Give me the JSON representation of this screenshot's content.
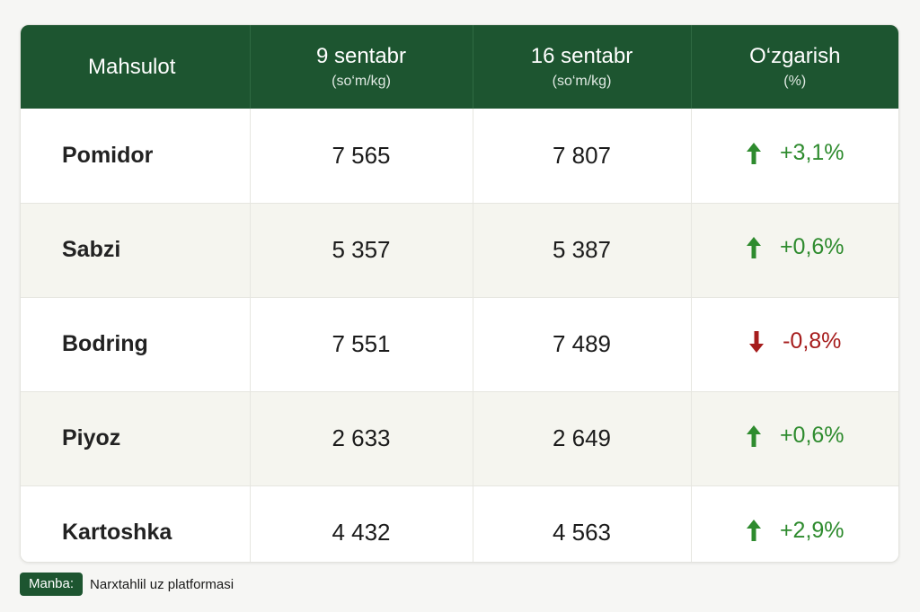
{
  "table": {
    "headers": [
      {
        "main": "Mahsulot",
        "sub": ""
      },
      {
        "main": "9 sentabr",
        "sub": "(so‘m/kg)"
      },
      {
        "main": "16 sentabr",
        "sub": "(so‘m/kg)"
      },
      {
        "main": "O‘zgarish",
        "sub": "(%)"
      }
    ],
    "rows": [
      {
        "product": "Pomidor",
        "sep9": "7 565",
        "sep16": "7 807",
        "change": "+3,1%",
        "direction": "up"
      },
      {
        "product": "Sabzi",
        "sep9": "5 357",
        "sep16": "5 387",
        "change": "+0,6%",
        "direction": "up"
      },
      {
        "product": "Bodring",
        "sep9": "7 551",
        "sep16": "7 489",
        "change": "-0,8%",
        "direction": "down"
      },
      {
        "product": "Piyoz",
        "sep9": "2 633",
        "sep16": "2 649",
        "change": "+0,6%",
        "direction": "up"
      },
      {
        "product": "Kartoshka",
        "sep9": "4 432",
        "sep16": "4 563",
        "change": "+2,9%",
        "direction": "up"
      }
    ]
  },
  "source": {
    "label": "Manba:",
    "text": "Narxtahlil uz platformasi"
  },
  "colors": {
    "header_bg": "#1d5530",
    "up": "#2e8b2e",
    "down": "#a61c1c"
  },
  "icons": {
    "up": "arrow-up-icon",
    "down": "arrow-down-icon"
  }
}
